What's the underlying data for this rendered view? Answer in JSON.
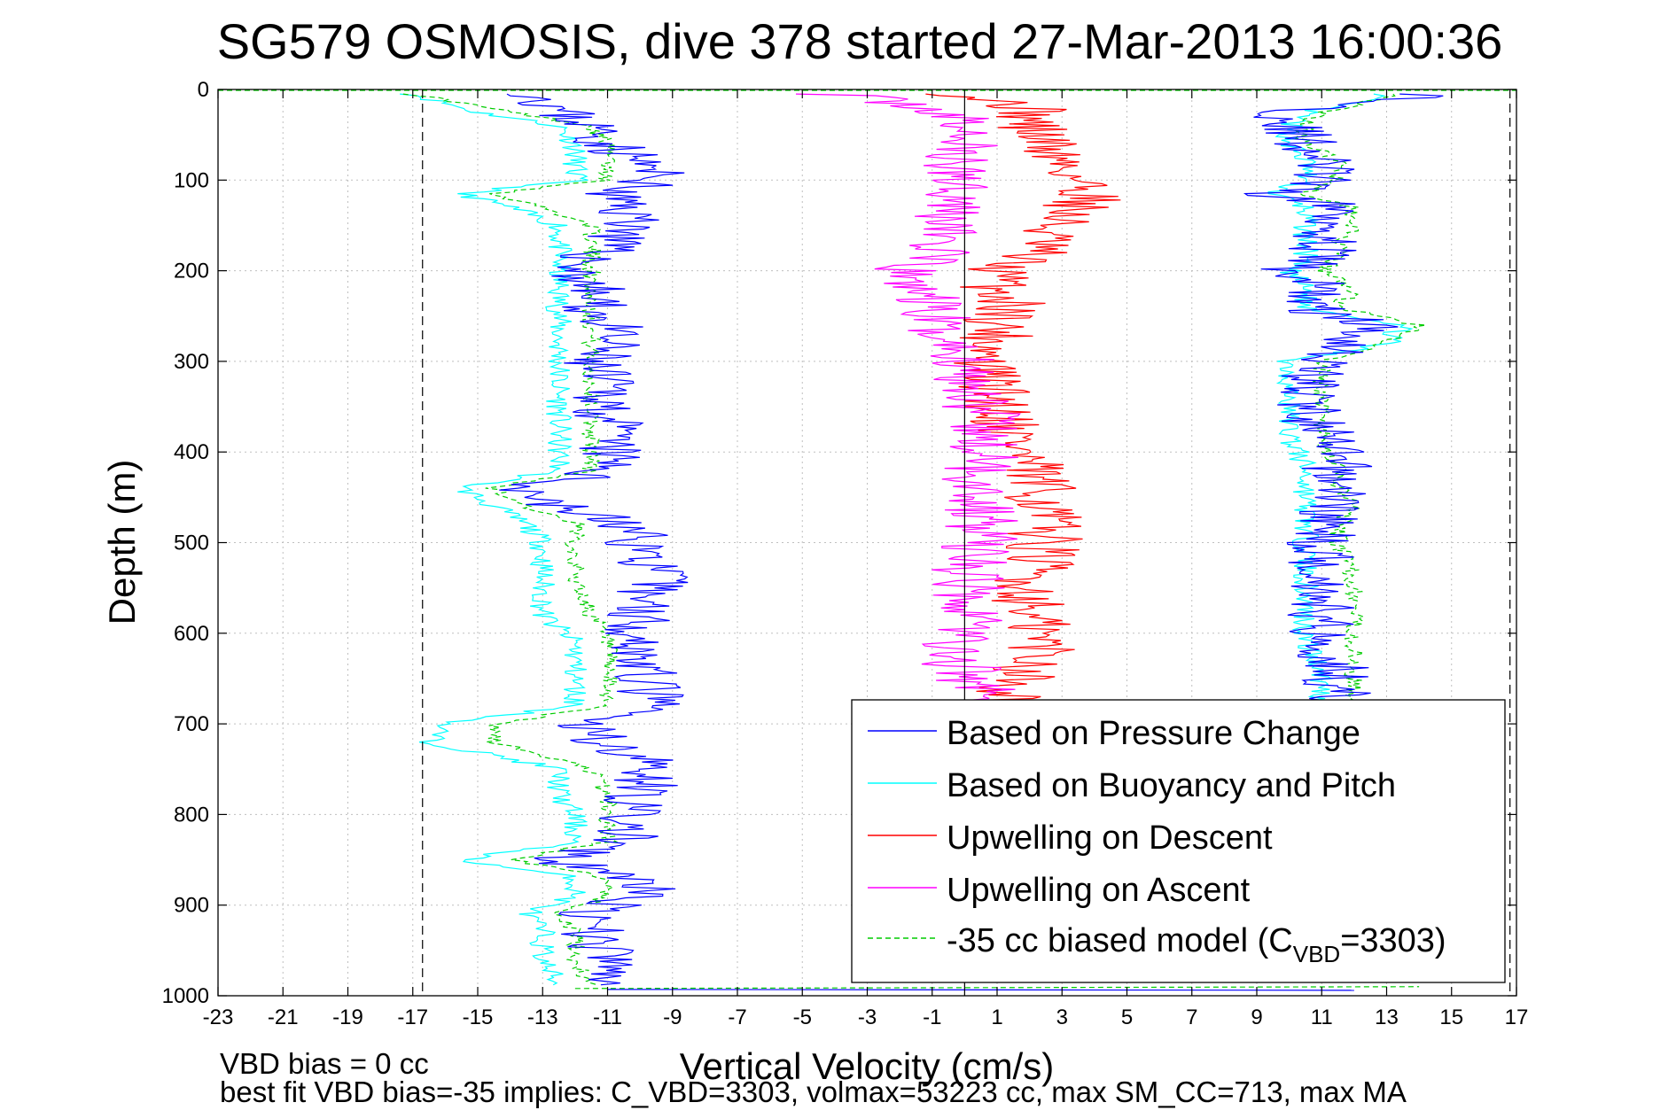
{
  "chart_data": {
    "type": "line",
    "title": "SG579 OSMOSIS, dive 378 started 27-Mar-2013 16:00:36",
    "xlabel": "Vertical Velocity (cm/s)",
    "ylabel": "Depth (m)",
    "xlim": [
      -23,
      17
    ],
    "ylim": [
      0,
      1000
    ],
    "y_reversed": true,
    "grid": true,
    "x_ticks": [
      "-23",
      "-21",
      "-19",
      "-17",
      "-15",
      "-13",
      "-11",
      "-9",
      "-7",
      "-5",
      "-3",
      "-1",
      "1",
      "3",
      "5",
      "7",
      "9",
      "11",
      "13",
      "15",
      "17"
    ],
    "y_ticks": [
      "0",
      "100",
      "200",
      "300",
      "400",
      "500",
      "600",
      "700",
      "800",
      "900",
      "1000"
    ],
    "vertical_lines": [
      {
        "x": 0,
        "style": "solid"
      },
      {
        "x": -16.7,
        "style": "dashed"
      },
      {
        "x": 16.8,
        "style": "dashed"
      }
    ],
    "legend_position": "bottom-right",
    "legend": {
      "items": [
        {
          "label": "Based on Pressure Change"
        },
        {
          "label": "Based on Buoyancy and Pitch"
        },
        {
          "label": "Upwelling on Descent"
        },
        {
          "label": "Upwelling on Ascent"
        },
        {
          "label": "-35 cc biased model (C",
          "sub": "VBD",
          "suffix": "=3303)"
        }
      ]
    },
    "footer": {
      "line1": "VBD bias = 0 cc",
      "line2": "best fit VBD bias=-35 implies: C_VBD=3303, volmax=53223 cc, max SM_CC=713, max MA"
    },
    "series": [
      {
        "name": "Based on Pressure Change",
        "color": "#0000ff",
        "depth": [
          5,
          25,
          40,
          60,
          80,
          100,
          115,
          130,
          150,
          170,
          185,
          200,
          220,
          240,
          260,
          280,
          300,
          340,
          380,
          420,
          440,
          460,
          480,
          500,
          540,
          580,
          610,
          640,
          680,
          700,
          720,
          750,
          780,
          800,
          830,
          850,
          870,
          890,
          910,
          930,
          960,
          990
        ],
        "descent": [
          -13,
          -12.5,
          -11.5,
          -11,
          -10,
          -9.5,
          -11,
          -10.5,
          -10,
          -11,
          -11.5,
          -12,
          -11.5,
          -11.5,
          -11,
          -11,
          -11.5,
          -11,
          -11,
          -11,
          -13.5,
          -12.5,
          -10.5,
          -10,
          -9.5,
          -10,
          -10,
          -10,
          -9.5,
          -12,
          -11,
          -9.5,
          -10,
          -10.5,
          -10.5,
          -13,
          -10,
          -10,
          -12,
          -11.5,
          -11,
          -11
        ],
        "ascent": [
          14.5,
          10,
          10,
          10.5,
          11,
          11,
          9.5,
          11.5,
          11.5,
          11,
          11,
          10,
          11,
          10.5,
          12.5,
          12,
          11,
          10.5,
          11,
          11.5,
          11.5,
          11.5,
          11,
          11,
          11,
          11,
          11,
          11.5,
          11.5
        ]
      },
      {
        "name": "Based on Buoyancy and Pitch",
        "color": "#00ffff",
        "depth": [
          5,
          25,
          40,
          60,
          80,
          100,
          115,
          130,
          150,
          170,
          185,
          200,
          220,
          240,
          260,
          280,
          300,
          340,
          380,
          420,
          440,
          460,
          480,
          500,
          540,
          580,
          610,
          640,
          680,
          700,
          720,
          750,
          780,
          800,
          830,
          850,
          870,
          890,
          910,
          930,
          960,
          990
        ],
        "descent": [
          -17,
          -15,
          -12.5,
          -12,
          -12,
          -12,
          -15.5,
          -14,
          -12.5,
          -12.5,
          -12.5,
          -12.5,
          -12.5,
          -12.5,
          -12.5,
          -12.5,
          -12.5,
          -12.5,
          -12.5,
          -12.5,
          -15.5,
          -14.5,
          -13.5,
          -13,
          -13,
          -13,
          -12,
          -12,
          -12,
          -16,
          -16.5,
          -12.5,
          -12.5,
          -12,
          -12,
          -15.5,
          -12,
          -12,
          -13.5,
          -13,
          -13,
          -12.5
        ],
        "ascent": [
          13,
          10.5,
          10,
          10,
          10.5,
          10.5,
          9.5,
          10.5,
          10.5,
          10.5,
          10.5,
          10,
          10.5,
          10.5,
          13.5,
          13,
          10,
          10,
          10,
          10.5,
          10.5,
          10.5,
          10.5,
          10.5,
          10.5,
          10.5,
          10.5,
          11,
          11
        ]
      },
      {
        "name": "Upwelling on Descent",
        "color": "#ff0000",
        "depth": [
          5,
          20,
          40,
          60,
          80,
          100,
          120,
          140,
          160,
          180,
          200,
          220,
          240,
          260,
          280,
          300,
          340,
          380,
          420,
          460,
          500,
          540,
          580,
          620,
          660,
          700
        ],
        "values": [
          0,
          2,
          2,
          2.5,
          3,
          3.5,
          4,
          3,
          2.5,
          2,
          1,
          1,
          1.5,
          1,
          1,
          0.5,
          1,
          1.5,
          2,
          2.5,
          2.5,
          2,
          2,
          2.5,
          1.5,
          1.5
        ]
      },
      {
        "name": "Upwelling on Ascent",
        "color": "#ff00ff",
        "depth": [
          5,
          20,
          40,
          60,
          80,
          100,
          120,
          140,
          160,
          180,
          200,
          220,
          240,
          260,
          280,
          300,
          340,
          380,
          420,
          460,
          500,
          540,
          580,
          620,
          660,
          700
        ],
        "values": [
          -4,
          -1,
          0,
          0,
          -0.5,
          0,
          0,
          -0.5,
          -0.5,
          -1,
          -2,
          -1.5,
          -1,
          -1,
          -0.5,
          0,
          0.5,
          0.5,
          0.5,
          0.5,
          0.5,
          0,
          0.5,
          -0.5,
          0.5,
          0.5
        ]
      },
      {
        "name": "-35 cc biased model (CVBD=3303)",
        "color": "#00cc00",
        "depth": [
          5,
          25,
          40,
          60,
          80,
          100,
          115,
          130,
          150,
          170,
          185,
          200,
          220,
          240,
          260,
          280,
          300,
          340,
          380,
          420,
          440,
          460,
          480,
          500,
          540,
          580,
          610,
          640,
          680,
          700,
          720,
          750,
          780,
          800,
          830,
          850,
          870,
          890,
          910,
          930,
          960,
          990
        ],
        "descent": [
          -17,
          -14,
          -11.5,
          -11,
          -11,
          -11,
          -14.5,
          -13,
          -11.5,
          -11.5,
          -11.5,
          -11.5,
          -11.5,
          -11.5,
          -11.5,
          -11.5,
          -11.5,
          -11.5,
          -11.5,
          -11.5,
          -14.5,
          -13.5,
          -12,
          -12,
          -12,
          -11.5,
          -11,
          -11,
          -11,
          -14.5,
          -14.5,
          -11.5,
          -11,
          -11,
          -11,
          -14,
          -11,
          -11,
          -12.5,
          -12,
          -12,
          -11.5
        ],
        "ascent": [
          13.5,
          11,
          10.5,
          10.5,
          11.5,
          11.5,
          10.5,
          12,
          12,
          11.5,
          11.5,
          11,
          12,
          11.5,
          14,
          13,
          11,
          11,
          11,
          11.5,
          11.5,
          12,
          11.5,
          11.5,
          12,
          12,
          12,
          12,
          12
        ]
      }
    ]
  }
}
